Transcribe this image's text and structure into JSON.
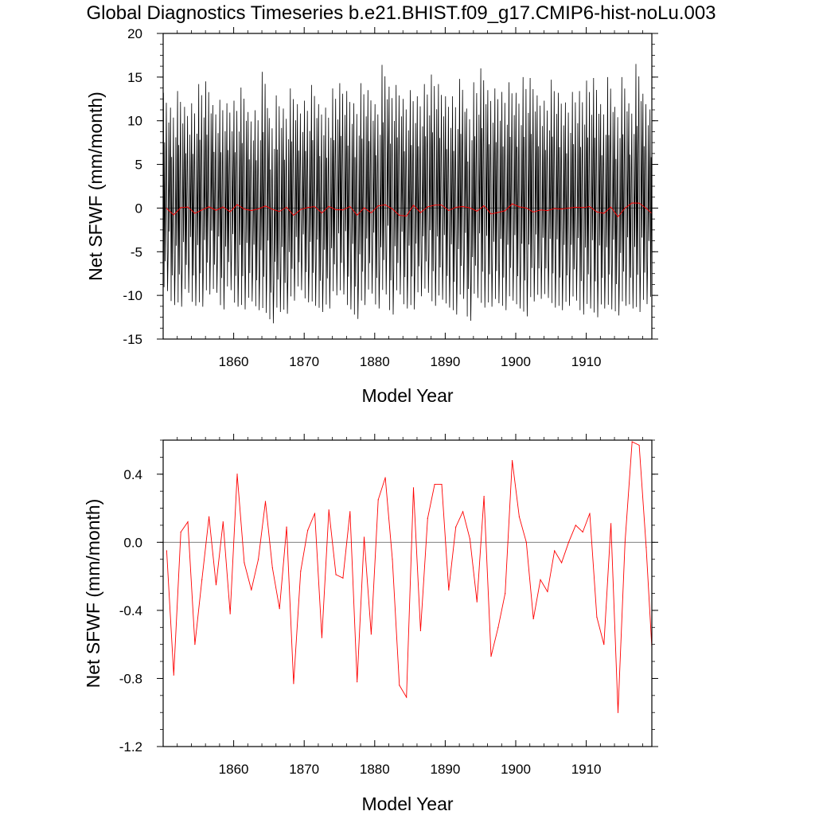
{
  "title": "Global Diagnostics Timeseries b.e21.BHIST.f09_g17.CMIP6-hist-noLu.003",
  "colors": {
    "monthly": "#000000",
    "annual": "#ff0000",
    "zero_line": "#808080",
    "frame": "#000000"
  },
  "chart_data": [
    {
      "type": "line",
      "xlabel": "Model Year",
      "ylabel": "Net SFWF (mm/month)",
      "xlim": [
        1850,
        1919.3
      ],
      "ylim": [
        -15,
        20
      ],
      "x_ticks": [
        1860,
        1870,
        1880,
        1890,
        1900,
        1910
      ],
      "x_tick_labels": [
        "1860",
        "1870",
        "1880",
        "1890",
        "1900",
        "1910"
      ],
      "y_ticks": [
        -15,
        -10,
        -5,
        0,
        5,
        10,
        15,
        20
      ],
      "y_tick_labels": [
        "-15",
        "-10",
        "-5",
        "0",
        "5",
        "10",
        "15",
        "20"
      ],
      "reference_line": 0,
      "series": [
        {
          "color": "#000000",
          "x_start": 1850.04,
          "x_step": 0.0833333,
          "annual_max": [
            13.2,
            11.5,
            13.4,
            11.6,
            12.0,
            14.2,
            14.5,
            11.8,
            12.4,
            12.0,
            12.3,
            13.8,
            11.0,
            11.2,
            15.6,
            10.3,
            12.9,
            11.4,
            13.7,
            11.9,
            12.3,
            14.1,
            11.9,
            11.5,
            13.7,
            14.3,
            13.4,
            12.0,
            14.3,
            13.5,
            11.9,
            16.4,
            13.9,
            14.1,
            12.5,
            13.5,
            12.8,
            14.2,
            15.3,
            14.2,
            12.8,
            12.8,
            14.8,
            11.4,
            14.4,
            16.0,
            13.5,
            13.7,
            13.3,
            14.4,
            13.2,
            15.0,
            14.9,
            12.9,
            12.3,
            14.7,
            13.2,
            12.1,
            13.3,
            13.4,
            14.6,
            14.9,
            11.9,
            15.0,
            11.6,
            15.0,
            12.0,
            16.5,
            13.1,
            11.3
          ],
          "annual_min": [
            -9.5,
            -11.1,
            -11.3,
            -9.7,
            -11.2,
            -11.3,
            -9.9,
            -9.7,
            -11.6,
            -9.4,
            -11.3,
            -11.6,
            -10.7,
            -11.7,
            -12.0,
            -13.2,
            -11.9,
            -12.1,
            -10.6,
            -9.4,
            -10.8,
            -11.2,
            -11.9,
            -11.5,
            -10.0,
            -9.9,
            -11.6,
            -12.7,
            -11.1,
            -9.8,
            -11.5,
            -9.9,
            -12.2,
            -9.9,
            -11.5,
            -11.6,
            -10.1,
            -9.7,
            -11.2,
            -10.5,
            -11.4,
            -12.2,
            -10.4,
            -12.9,
            -10.3,
            -11.4,
            -11.3,
            -10.9,
            -11.7,
            -10.6,
            -11.5,
            -12.4,
            -10.7,
            -10.4,
            -10.3,
            -11.4,
            -11.7,
            -11.2,
            -10.6,
            -12.2,
            -11.5,
            -12.5,
            -11.5,
            -11.6,
            -12.3,
            -11.2,
            -11.5,
            -11.9,
            -11.0,
            -10.6
          ]
        },
        {
          "color": "#ff0000",
          "x": [
            1850.5,
            1851.5,
            1852.5,
            1853.5,
            1854.5,
            1855.5,
            1856.5,
            1857.5,
            1858.5,
            1859.5,
            1860.5,
            1861.5,
            1862.5,
            1863.5,
            1864.5,
            1865.5,
            1866.5,
            1867.5,
            1868.5,
            1869.5,
            1870.5,
            1871.5,
            1872.5,
            1873.5,
            1874.5,
            1875.5,
            1876.5,
            1877.5,
            1878.5,
            1879.5,
            1880.5,
            1881.5,
            1882.5,
            1883.5,
            1884.5,
            1885.5,
            1886.5,
            1887.5,
            1888.5,
            1889.5,
            1890.5,
            1891.5,
            1892.5,
            1893.5,
            1894.5,
            1895.5,
            1896.5,
            1897.5,
            1898.5,
            1899.5,
            1900.5,
            1901.5,
            1902.5,
            1903.5,
            1904.5,
            1905.5,
            1906.5,
            1907.5,
            1908.5,
            1909.5,
            1910.5,
            1911.5,
            1912.5,
            1913.5,
            1914.5,
            1915.5,
            1916.5,
            1917.5,
            1918.5,
            1919.3
          ],
          "y": [
            -0.05,
            -0.78,
            0.06,
            0.12,
            -0.6,
            -0.22,
            0.15,
            -0.25,
            0.12,
            -0.42,
            0.4,
            -0.12,
            -0.28,
            -0.1,
            0.24,
            -0.15,
            -0.39,
            0.09,
            -0.83,
            -0.17,
            0.07,
            0.17,
            -0.56,
            0.19,
            -0.19,
            -0.21,
            0.18,
            -0.82,
            0.03,
            -0.54,
            0.25,
            0.38,
            -0.1,
            -0.84,
            -0.91,
            0.32,
            -0.52,
            0.14,
            0.34,
            0.34,
            -0.28,
            0.09,
            0.18,
            0.02,
            -0.35,
            0.27,
            -0.67,
            -0.5,
            -0.3,
            0.48,
            0.15,
            0.0,
            -0.45,
            -0.22,
            -0.29,
            -0.05,
            -0.12,
            0.0,
            0.1,
            0.06,
            0.17,
            -0.44,
            -0.6,
            0.11,
            -1.0,
            0.0,
            0.59,
            0.57,
            -0.03,
            -0.62
          ]
        }
      ]
    },
    {
      "type": "line",
      "xlabel": "Model Year",
      "ylabel": "Net SFWF (mm/month)",
      "xlim": [
        1850,
        1919.3
      ],
      "ylim": [
        -1.2,
        0.6
      ],
      "x_ticks": [
        1860,
        1870,
        1880,
        1890,
        1900,
        1910
      ],
      "x_tick_labels": [
        "1860",
        "1870",
        "1880",
        "1890",
        "1900",
        "1910"
      ],
      "y_ticks": [
        -1.2,
        -0.8,
        -0.4,
        0.0,
        0.4
      ],
      "y_tick_labels": [
        "-1.2",
        "-0.8",
        "-0.4",
        "0.0",
        "0.4"
      ],
      "reference_line": 0,
      "series": [
        {
          "color": "#ff0000",
          "x": [
            1850.5,
            1851.5,
            1852.5,
            1853.5,
            1854.5,
            1855.5,
            1856.5,
            1857.5,
            1858.5,
            1859.5,
            1860.5,
            1861.5,
            1862.5,
            1863.5,
            1864.5,
            1865.5,
            1866.5,
            1867.5,
            1868.5,
            1869.5,
            1870.5,
            1871.5,
            1872.5,
            1873.5,
            1874.5,
            1875.5,
            1876.5,
            1877.5,
            1878.5,
            1879.5,
            1880.5,
            1881.5,
            1882.5,
            1883.5,
            1884.5,
            1885.5,
            1886.5,
            1887.5,
            1888.5,
            1889.5,
            1890.5,
            1891.5,
            1892.5,
            1893.5,
            1894.5,
            1895.5,
            1896.5,
            1897.5,
            1898.5,
            1899.5,
            1900.5,
            1901.5,
            1902.5,
            1903.5,
            1904.5,
            1905.5,
            1906.5,
            1907.5,
            1908.5,
            1909.5,
            1910.5,
            1911.5,
            1912.5,
            1913.5,
            1914.5,
            1915.5,
            1916.5,
            1917.5,
            1918.5,
            1919.3
          ],
          "y": [
            -0.05,
            -0.78,
            0.06,
            0.12,
            -0.6,
            -0.22,
            0.15,
            -0.25,
            0.12,
            -0.42,
            0.4,
            -0.12,
            -0.28,
            -0.1,
            0.24,
            -0.15,
            -0.39,
            0.09,
            -0.83,
            -0.17,
            0.07,
            0.17,
            -0.56,
            0.19,
            -0.19,
            -0.21,
            0.18,
            -0.82,
            0.03,
            -0.54,
            0.25,
            0.38,
            -0.1,
            -0.84,
            -0.91,
            0.32,
            -0.52,
            0.14,
            0.34,
            0.34,
            -0.28,
            0.09,
            0.18,
            0.02,
            -0.35,
            0.27,
            -0.67,
            -0.5,
            -0.3,
            0.48,
            0.15,
            0.0,
            -0.45,
            -0.22,
            -0.29,
            -0.05,
            -0.12,
            0.0,
            0.1,
            0.06,
            0.17,
            -0.44,
            -0.6,
            0.11,
            -1.0,
            0.0,
            0.59,
            0.57,
            -0.03,
            -0.62
          ]
        }
      ]
    }
  ]
}
